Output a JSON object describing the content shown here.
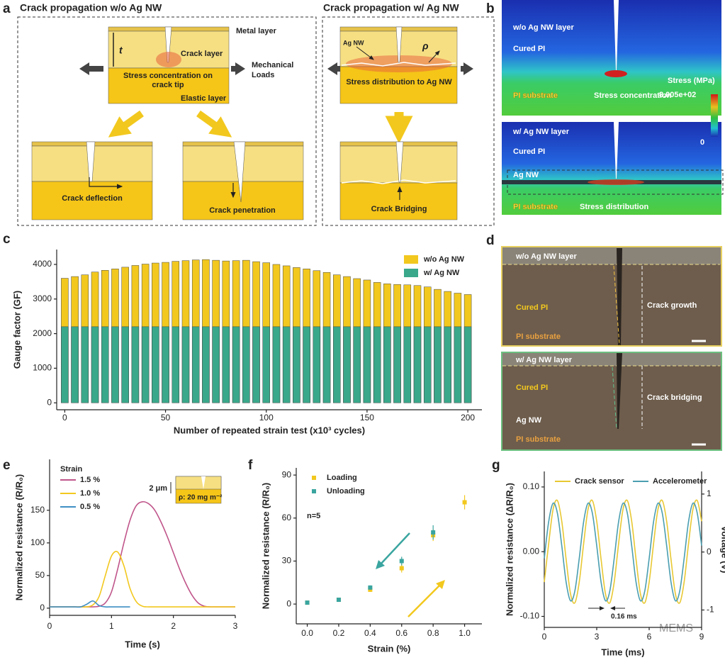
{
  "panel_labels": [
    "a",
    "b",
    "c",
    "d",
    "e",
    "f",
    "g"
  ],
  "panel_a": {
    "left_title": "Crack propagation w/o Ag NW",
    "right_title": "Crack propagation w/ Ag NW",
    "metal_layer": "Metal layer",
    "thickness": "t",
    "crack_layer": "Crack layer",
    "stress_concentration": [
      "Stress concentration on",
      "crack tip"
    ],
    "mechanical_loads": [
      "Mechanical",
      "Loads"
    ],
    "elastic_layer": "Elastic layer",
    "crack_deflection": "Crack deflection",
    "crack_penetration": "Crack penetration",
    "ag_nw": "Ag NW",
    "rho": "ρ",
    "stress_distribution": "Stress distribution to Ag NW",
    "crack_bridging": "Crack Bridging"
  },
  "panel_b": {
    "top_layer": "w/o Ag NW layer",
    "top_cured": "Cured PI",
    "top_substrate": "PI substrate",
    "top_note": "Stress concentration",
    "scale_title": "Stress (MPa)",
    "scale_max": "8.005e+02",
    "scale_min": "0",
    "bottom_layer": "w/ Ag NW layer",
    "bottom_cured": "Cured PI",
    "bottom_agnw": "Ag NW",
    "bottom_substrate": "PI substrate",
    "bottom_note": "Stress distribution"
  },
  "panel_d": {
    "top_layer": "w/o Ag NW layer",
    "top_cured": "Cured PI",
    "top_substrate": "PI substrate",
    "top_note": "Crack growth",
    "bottom_layer": "w/ Ag NW layer",
    "bottom_cured": "Cured PI",
    "bottom_note": "Crack bridging",
    "bottom_agnw": "Ag NW",
    "bottom_substrate": "PI substrate"
  },
  "watermark": "MEMS",
  "chart_data": [
    {
      "type": "bar",
      "xlabel": "Number of repeated strain test (x10³ cycles)",
      "ylabel": "Gauge factor (GF)",
      "x": [
        0,
        5,
        10,
        15,
        20,
        25,
        30,
        35,
        40,
        45,
        50,
        55,
        60,
        65,
        70,
        75,
        80,
        85,
        90,
        95,
        100,
        105,
        110,
        115,
        120,
        125,
        130,
        135,
        140,
        145,
        150,
        155,
        160,
        165,
        170,
        175,
        180,
        185,
        190,
        195,
        200
      ],
      "series": [
        {
          "name": "w/o Ag NW",
          "color": "#f2c81e",
          "values": [
            3600,
            3650,
            3700,
            3780,
            3830,
            3870,
            3920,
            3970,
            4010,
            4040,
            4060,
            4090,
            4110,
            4130,
            4140,
            4120,
            4100,
            4110,
            4120,
            4080,
            4050,
            4000,
            3960,
            3910,
            3870,
            3820,
            3770,
            3700,
            3650,
            3590,
            3550,
            3480,
            3440,
            3420,
            3410,
            3390,
            3350,
            3280,
            3220,
            3170,
            3130
          ]
        },
        {
          "name": "w/ Ag NW",
          "color": "#3aa88a",
          "values": [
            2200,
            2200,
            2200,
            2200,
            2200,
            2200,
            2200,
            2200,
            2200,
            2200,
            2200,
            2200,
            2200,
            2200,
            2200,
            2200,
            2200,
            2200,
            2200,
            2200,
            2200,
            2200,
            2200,
            2200,
            2200,
            2200,
            2200,
            2200,
            2200,
            2200,
            2200,
            2200,
            2200,
            2200,
            2200,
            2200,
            2200,
            2200,
            2200,
            2200,
            2200
          ]
        }
      ],
      "xlim": [
        -4,
        207
      ],
      "ylim": [
        -200,
        4430
      ],
      "xticks": [
        0,
        50,
        100,
        150,
        200
      ],
      "yticks": [
        0,
        1000,
        2000,
        3000,
        4000
      ],
      "legend": "upper right"
    },
    {
      "type": "line",
      "xlabel": "Time (s)",
      "ylabel": "Normalized resistance (R/R₀)",
      "legend_title": "Strain",
      "legend": "upper left",
      "x": [
        0,
        0.1,
        0.2,
        0.3,
        0.4,
        0.5,
        0.6,
        0.7,
        0.8,
        0.9,
        1.0,
        1.1,
        1.2,
        1.3,
        1.4,
        1.5,
        1.6,
        1.7,
        1.8,
        1.9,
        2.0,
        2.1,
        2.2,
        2.3,
        2.4,
        2.5,
        2.6,
        2.7,
        2.8,
        2.9,
        3.0
      ],
      "series": [
        {
          "name": "1.5 %",
          "color": "#c0558a",
          "values": [
            2,
            2,
            2,
            2,
            2,
            2,
            2,
            2,
            3,
            8,
            25,
            60,
            100,
            135,
            157,
            163,
            160,
            150,
            132,
            110,
            85,
            60,
            38,
            20,
            8,
            3,
            2,
            2,
            2,
            2,
            2
          ]
        },
        {
          "name": "1.0 %",
          "color": "#f2c81e",
          "values": [
            2,
            2,
            2,
            2,
            2,
            2,
            2,
            5,
            18,
            50,
            80,
            86,
            65,
            30,
            10,
            3,
            2,
            2,
            2,
            2,
            2,
            2,
            2,
            2,
            2,
            2,
            2,
            2,
            2,
            2,
            2
          ]
        },
        {
          "name": "0.5 %",
          "color": "#3f8fc4",
          "values": [
            2,
            2,
            2,
            2,
            2,
            2,
            6,
            11,
            4,
            2,
            2,
            2,
            2,
            2,
            null,
            null,
            null,
            null,
            null,
            null,
            null,
            null,
            null,
            null,
            null,
            null,
            null,
            null,
            null,
            null,
            null
          ]
        }
      ],
      "xlim": [
        0,
        3
      ],
      "ylim": [
        -11,
        228
      ],
      "xticks": [
        0,
        1,
        2,
        3
      ],
      "yticks": [
        0,
        50,
        100,
        150
      ],
      "inset_scale": "2 μm",
      "inset_density": "ρ: 20 mg m⁻²"
    },
    {
      "type": "scatter",
      "xlabel": "Strain (%)",
      "ylabel": "Normalized resistance (R/R₀)",
      "legend": "upper left",
      "annotation": "n=5",
      "series": [
        {
          "name": "Loading",
          "color": "#f2c81e",
          "x": [
            0,
            0.2,
            0.4,
            0.6,
            0.8,
            1.0
          ],
          "values": [
            1,
            3,
            10,
            25,
            48,
            71
          ],
          "errors": [
            0.5,
            1,
            1.5,
            3,
            4,
            5
          ]
        },
        {
          "name": "Unloading",
          "color": "#3aa5a0",
          "x": [
            0,
            0.2,
            0.4,
            0.6,
            0.8
          ],
          "values": [
            1,
            3,
            11.5,
            30,
            50
          ],
          "errors": [
            0.5,
            1,
            1.5,
            3,
            5
          ]
        }
      ],
      "xlim": [
        -0.07,
        1.11
      ],
      "ylim": [
        -13.8,
        95
      ],
      "xticks": [
        {
          "value": 0,
          "label": "0.0"
        },
        0.2,
        0.4,
        0.6,
        0.8,
        {
          "value": 1,
          "label": "1.0"
        }
      ],
      "yticks": [
        0,
        30,
        60,
        90
      ]
    },
    {
      "type": "line",
      "xlabel": "Time (ms)",
      "ylabel": "Normalized resistance (ΔR/R₀)",
      "y2label": "Voltage (V)",
      "legend": "upper left",
      "annotation": "0.16 ms",
      "x": [
        0,
        0.25,
        0.5,
        0.75,
        1,
        1.25,
        1.5,
        1.75,
        2,
        2.25,
        2.5,
        2.75,
        3,
        3.25,
        3.5,
        3.75,
        4,
        4.25,
        4.5,
        4.75,
        5,
        5.25,
        5.5,
        5.75,
        6,
        6.25,
        6.5,
        6.75,
        7,
        7.25,
        7.5,
        7.75,
        8,
        8.25,
        8.5,
        8.75,
        9
      ],
      "series": [
        {
          "name": "Crack sensor",
          "color": "#e8c832",
          "values": [
            -0.047,
            0.012,
            0.065,
            0.079,
            0.047,
            -0.012,
            -0.065,
            -0.079,
            -0.047,
            0.012,
            0.065,
            0.079,
            0.047,
            -0.012,
            -0.065,
            -0.079,
            -0.047,
            0.012,
            0.065,
            0.079,
            0.047,
            -0.012,
            -0.065,
            -0.079,
            -0.047,
            0.012,
            0.065,
            0.079,
            0.047,
            -0.012,
            -0.065,
            -0.079,
            -0.047,
            0.012,
            0.065,
            0.079,
            0.047
          ]
        },
        {
          "name": "Accelerometer",
          "color": "#4a9eb0",
          "axis": "y2",
          "values": [
            -0.11,
            0.52,
            0.84,
            0.67,
            0.11,
            -0.52,
            -0.84,
            -0.67,
            -0.11,
            0.52,
            0.84,
            0.67,
            0.11,
            -0.52,
            -0.84,
            -0.67,
            -0.11,
            0.52,
            0.84,
            0.67,
            0.11,
            -0.52,
            -0.84,
            -0.67,
            -0.11,
            0.52,
            0.84,
            0.67,
            0.11,
            -0.52,
            -0.84,
            -0.67,
            -0.11,
            0.52,
            0.84,
            0.67,
            0.11
          ]
        }
      ],
      "xlim": [
        0,
        9
      ],
      "ylim": [
        -0.117,
        0.124
      ],
      "y2lim": [
        -1.3,
        1.39
      ],
      "xticks": [
        0,
        3,
        6,
        9
      ],
      "yticks": [
        {
          "value": -0.1,
          "label": "-0.10"
        },
        {
          "value": 0,
          "label": "0.00"
        },
        {
          "value": 0.1,
          "label": "0.10"
        }
      ],
      "y2ticks": [
        -1,
        0,
        1
      ]
    }
  ]
}
